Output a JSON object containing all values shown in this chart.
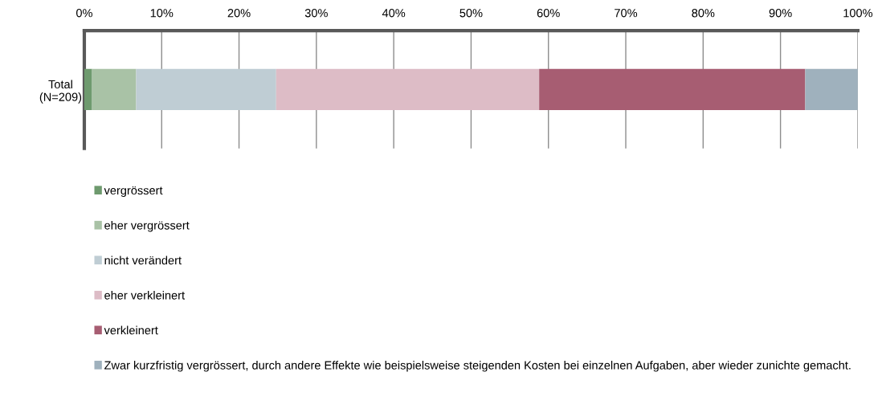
{
  "chart_data": {
    "type": "bar",
    "orientation": "horizontal",
    "stacked": true,
    "categories": [
      "Total\n(N=209)"
    ],
    "series": [
      {
        "name": "vergrössert",
        "color": "#6e9a6e",
        "values": [
          1.0
        ]
      },
      {
        "name": "eher vergrössert",
        "color": "#a9c2a6",
        "values": [
          5.7
        ]
      },
      {
        "name": "nicht verändert",
        "color": "#bfcdd4",
        "values": [
          18.1
        ]
      },
      {
        "name": "eher verkleinert",
        "color": "#ddbcc6",
        "values": [
          34.0
        ]
      },
      {
        "name": "verkleinert",
        "color": "#a75d72",
        "values": [
          34.4
        ]
      },
      {
        "name": "Zwar kurzfristig vergrössert, durch andere Effekte wie beispielsweise steigenden Kosten bei einzelnen Aufgaben, aber wieder zunichte gemacht.",
        "color": "#9fb1bd",
        "values": [
          6.8
        ]
      }
    ],
    "xlim": [
      0,
      100
    ],
    "xticks": [
      {
        "value": 0,
        "label": "0%"
      },
      {
        "value": 10,
        "label": "10%"
      },
      {
        "value": 20,
        "label": "20%"
      },
      {
        "value": 30,
        "label": "30%"
      },
      {
        "value": 40,
        "label": "40%"
      },
      {
        "value": 50,
        "label": "50%"
      },
      {
        "value": 60,
        "label": "60%"
      },
      {
        "value": 70,
        "label": "70%"
      },
      {
        "value": 80,
        "label": "80%"
      },
      {
        "value": 90,
        "label": "90%"
      },
      {
        "value": 100,
        "label": "100%"
      }
    ],
    "grid": "x",
    "legend": "bottom"
  }
}
